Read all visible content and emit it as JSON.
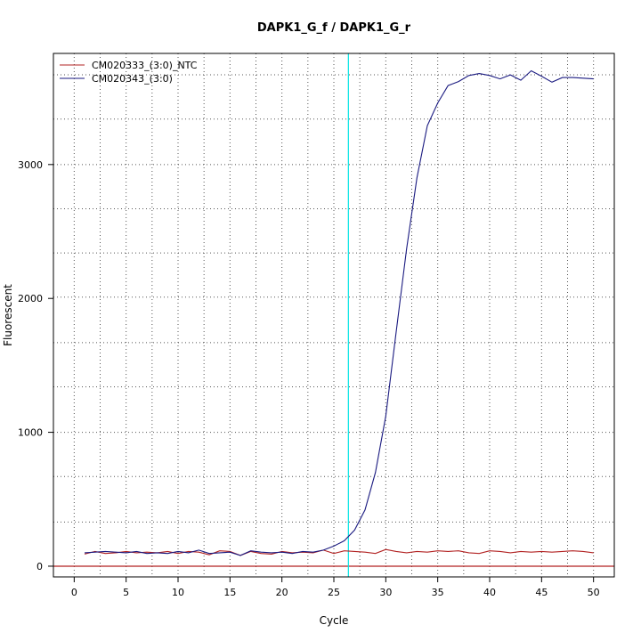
{
  "chart_data": {
    "type": "line",
    "title": "DAPK1_G_f / DAPK1_G_r",
    "xlabel": "Cycle",
    "ylabel": "Fluorescent",
    "xlim": [
      -2,
      52
    ],
    "ylim": [
      -80,
      3830
    ],
    "xticks": [
      0,
      5,
      10,
      15,
      20,
      25,
      30,
      35,
      40,
      45,
      50
    ],
    "yticks": [
      0,
      1000,
      2000,
      3000
    ],
    "x_grid": [
      2.5,
      7.5,
      12.5,
      17.5,
      22.5,
      27.5,
      32.5,
      37.5,
      42.5,
      47.5
    ],
    "y_grid": [
      330,
      670,
      1000,
      1340,
      1670,
      2010,
      2340,
      2670,
      3000,
      3340,
      3670
    ],
    "grid": true,
    "legend_position": "top-left",
    "threshold_cycle": 26.4,
    "threshold_color": "#00e5e5",
    "baseline_value": 0,
    "baseline_color": "#b22222",
    "series": [
      {
        "name": "CM020333_(3:0)_NTC",
        "color": "#b22222",
        "x": [
          1,
          2,
          3,
          4,
          5,
          6,
          7,
          8,
          9,
          10,
          11,
          12,
          13,
          14,
          15,
          16,
          17,
          18,
          19,
          20,
          21,
          22,
          23,
          24,
          25,
          26,
          27,
          28,
          29,
          30,
          31,
          32,
          33,
          34,
          35,
          36,
          37,
          38,
          39,
          40,
          41,
          42,
          43,
          44,
          45,
          46,
          47,
          48,
          49,
          50
        ],
        "values": [
          90,
          110,
          95,
          100,
          110,
          100,
          105,
          100,
          110,
          95,
          110,
          105,
          85,
          115,
          110,
          80,
          110,
          95,
          90,
          110,
          100,
          105,
          100,
          120,
          95,
          115,
          110,
          105,
          95,
          125,
          110,
          100,
          110,
          105,
          115,
          110,
          115,
          100,
          95,
          115,
          110,
          100,
          110,
          105,
          110,
          105,
          110,
          115,
          110,
          100
        ]
      },
      {
        "name": "CM020343_(3:0)",
        "color": "#1a1a80",
        "x": [
          1,
          2,
          3,
          4,
          5,
          6,
          7,
          8,
          9,
          10,
          11,
          12,
          13,
          14,
          15,
          16,
          17,
          18,
          19,
          20,
          21,
          22,
          23,
          24,
          25,
          26,
          27,
          28,
          29,
          30,
          31,
          32,
          33,
          34,
          35,
          36,
          37,
          38,
          39,
          40,
          41,
          42,
          43,
          44,
          45,
          46,
          47,
          48,
          49,
          50
        ],
        "values": [
          100,
          105,
          110,
          105,
          100,
          110,
          95,
          100,
          95,
          110,
          100,
          120,
          95,
          100,
          105,
          80,
          115,
          105,
          100,
          105,
          95,
          110,
          105,
          120,
          150,
          190,
          270,
          420,
          700,
          1120,
          1750,
          2370,
          2900,
          3290,
          3460,
          3590,
          3620,
          3665,
          3680,
          3665,
          3640,
          3670,
          3630,
          3700,
          3660,
          3615,
          3650,
          3650,
          3645,
          3640
        ]
      }
    ]
  }
}
